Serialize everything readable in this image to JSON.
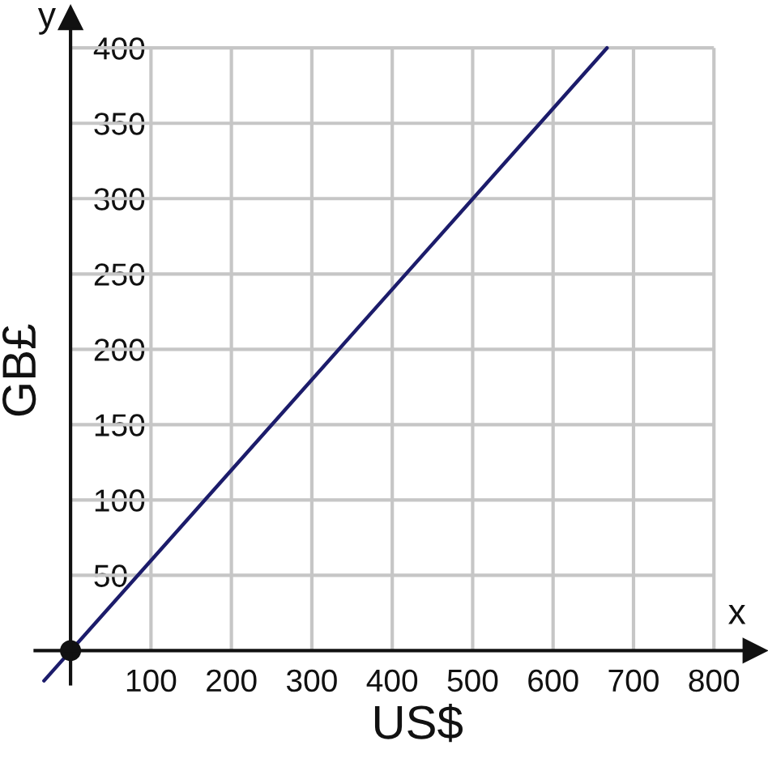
{
  "chart_data": {
    "type": "line",
    "xlabel": "US$",
    "ylabel": "GB£",
    "annotations": [
      "x",
      "y"
    ],
    "xlim": [
      -44,
      851
    ],
    "ylim": [
      -22,
      420
    ],
    "xticks": [
      100,
      200,
      300,
      400,
      500,
      600,
      700,
      800
    ],
    "yticks": [
      50,
      100,
      150,
      200,
      250,
      300,
      350,
      400
    ],
    "grid": true,
    "series": [
      {
        "x": [
          -33,
          667
        ],
        "values": [
          -20,
          400
        ],
        "color": "#1c1c6b"
      },
      {
        "type": "scatter",
        "x": [
          0
        ],
        "values": [
          0
        ],
        "color": "#111111",
        "marker": "circle"
      }
    ]
  }
}
